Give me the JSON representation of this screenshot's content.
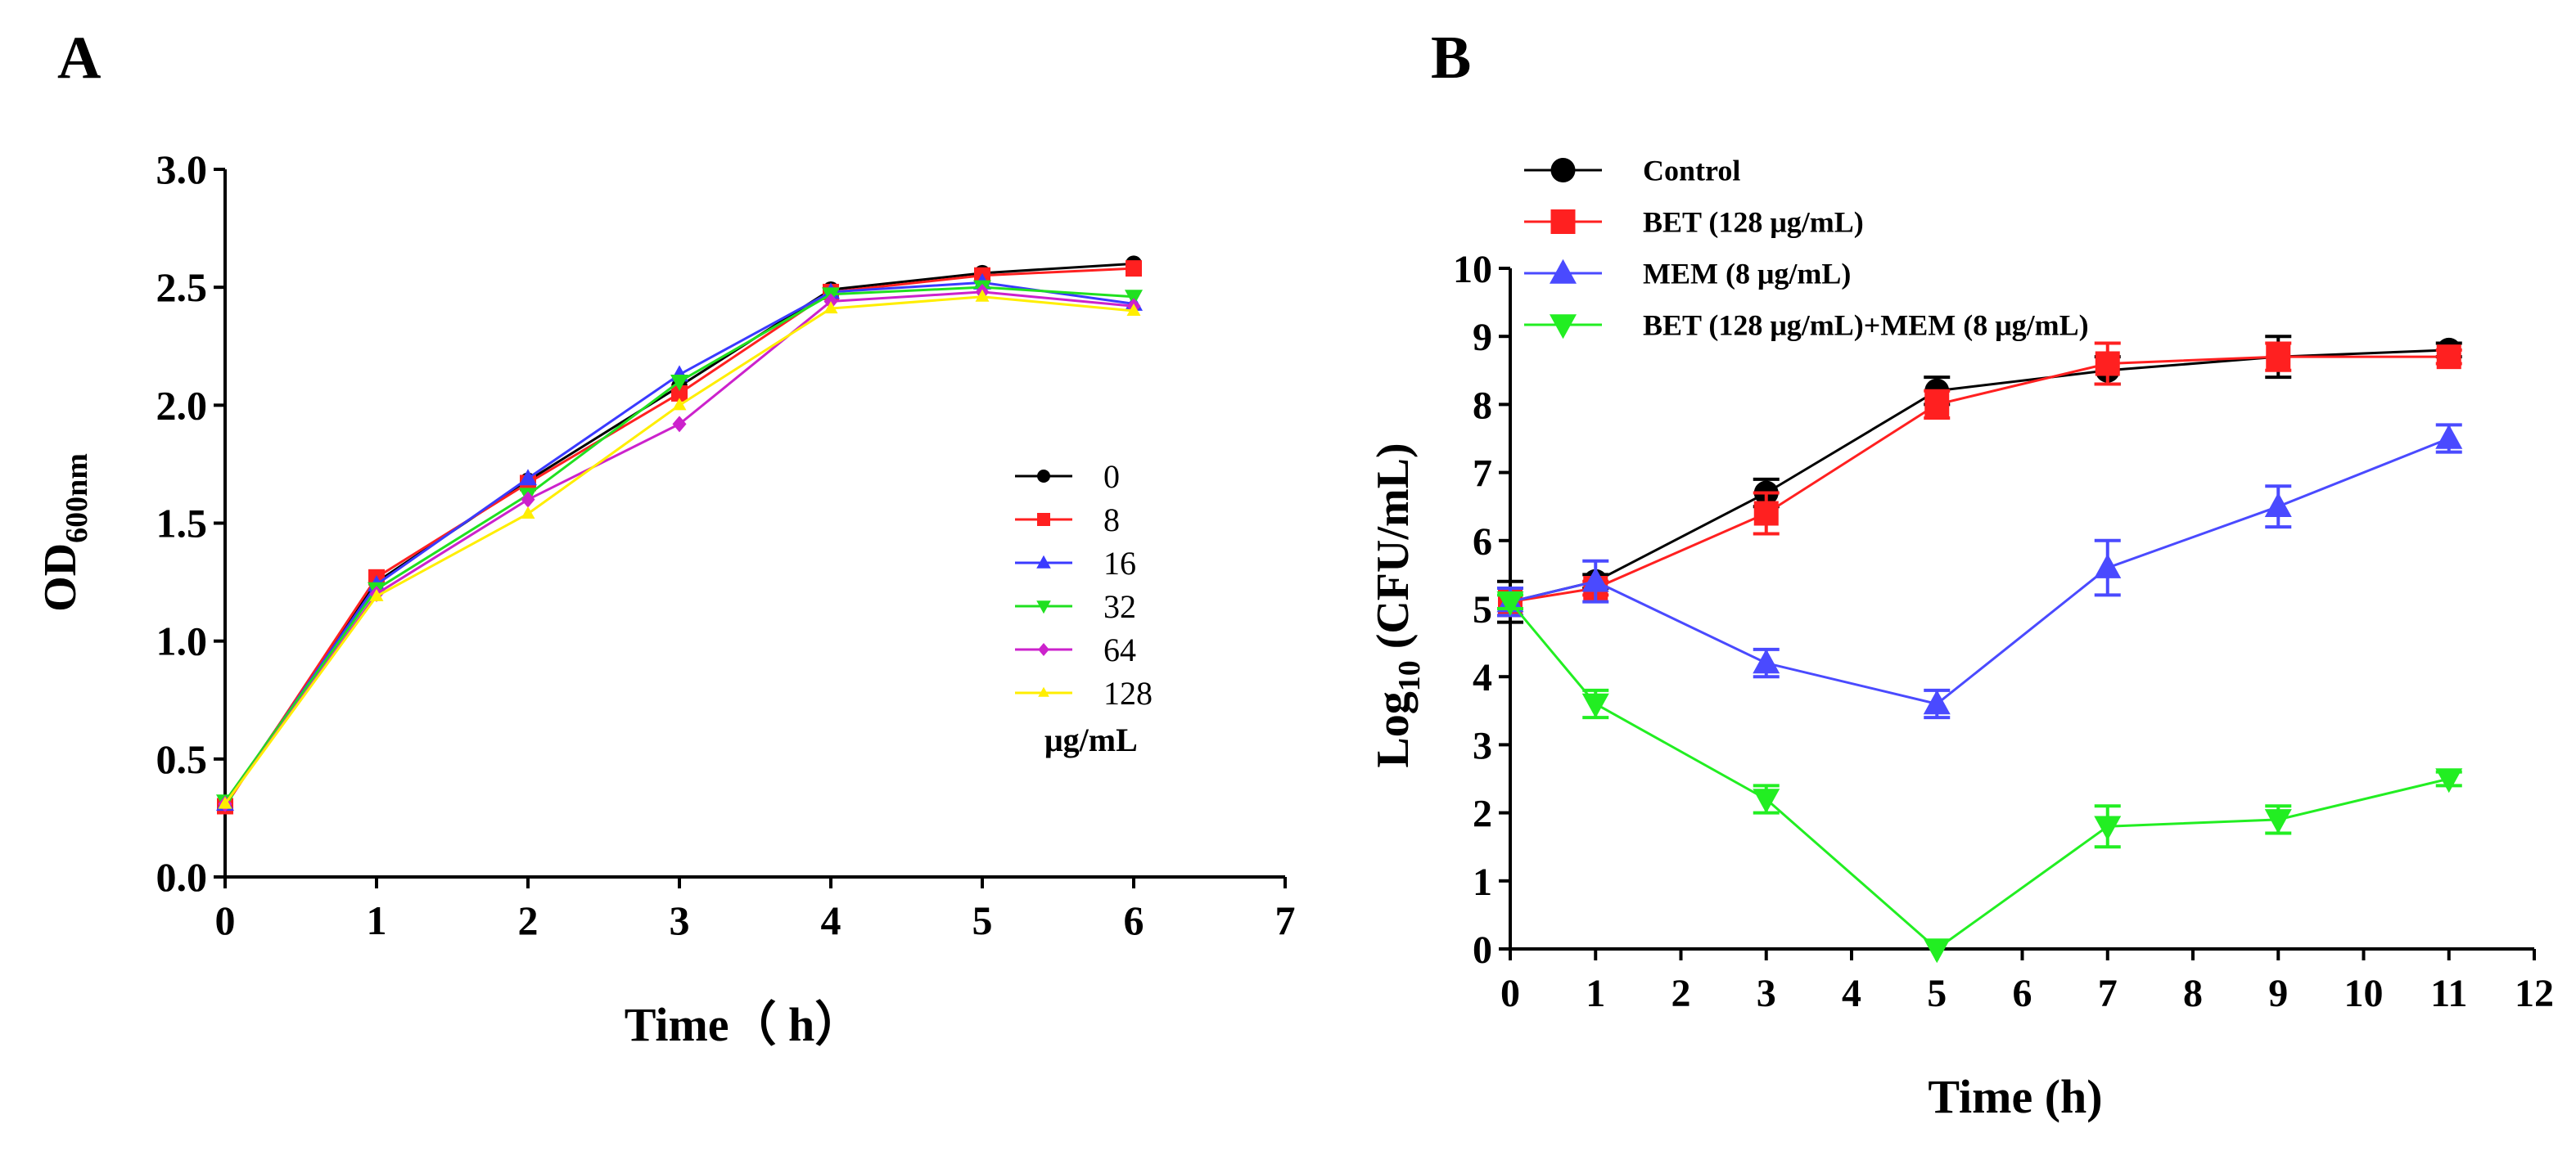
{
  "chart_data": [
    {
      "panel_label": "A",
      "type": "line",
      "title": "",
      "xlabel": "Time（ h）",
      "ylabel_main": "OD",
      "ylabel_sub": "600nm",
      "xlim": [
        0,
        7
      ],
      "ylim": [
        0,
        3.0
      ],
      "xticks": [
        "0",
        "1",
        "2",
        "3",
        "4",
        "5",
        "6",
        "7"
      ],
      "yticks": [
        "0.0",
        "0.5",
        "1.0",
        "1.5",
        "2.0",
        "2.5",
        "3.0"
      ],
      "legend_title": "μg/mL",
      "legend_position": "center-right",
      "x": [
        0,
        1,
        2,
        3,
        4,
        5,
        6
      ],
      "series": [
        {
          "name": "0",
          "color": "#000000",
          "marker": "circle",
          "values": [
            0.31,
            1.25,
            1.68,
            2.08,
            2.49,
            2.56,
            2.6
          ]
        },
        {
          "name": "8",
          "color": "#ff2020",
          "marker": "square",
          "values": [
            0.3,
            1.27,
            1.67,
            2.05,
            2.48,
            2.55,
            2.58
          ]
        },
        {
          "name": "16",
          "color": "#3a3aff",
          "marker": "triangle-up",
          "values": [
            0.31,
            1.24,
            1.69,
            2.13,
            2.48,
            2.52,
            2.43
          ]
        },
        {
          "name": "32",
          "color": "#20e020",
          "marker": "triangle-down",
          "values": [
            0.32,
            1.22,
            1.62,
            2.1,
            2.47,
            2.5,
            2.46
          ]
        },
        {
          "name": "64",
          "color": "#cc22cc",
          "marker": "diamond",
          "values": [
            0.31,
            1.2,
            1.6,
            1.92,
            2.44,
            2.48,
            2.42
          ]
        },
        {
          "name": "128",
          "color": "#ffee00",
          "marker": "triangle-up-small",
          "values": [
            0.31,
            1.19,
            1.54,
            2.0,
            2.41,
            2.46,
            2.4
          ]
        }
      ]
    },
    {
      "panel_label": "B",
      "type": "line",
      "title": "",
      "xlabel": "Time (h)",
      "ylabel_main": "Log",
      "ylabel_sub": "10",
      "ylabel_rest": " (CFU/mL)",
      "xlim": [
        0,
        12
      ],
      "ylim": [
        0,
        10
      ],
      "xticks": [
        "0",
        "1",
        "2",
        "3",
        "4",
        "5",
        "6",
        "7",
        "8",
        "9",
        "10",
        "11",
        "12"
      ],
      "yticks": [
        "0",
        "1",
        "2",
        "3",
        "4",
        "5",
        "6",
        "7",
        "8",
        "9",
        "10"
      ],
      "legend_position": "top-left",
      "x": [
        0,
        1,
        3,
        5,
        7,
        9,
        11
      ],
      "series": [
        {
          "name": "Control",
          "color": "#000000",
          "marker": "circle",
          "values": [
            5.1,
            5.4,
            6.7,
            8.2,
            8.5,
            8.7,
            8.8
          ],
          "errors": [
            0.3,
            0.1,
            0.2,
            0.2,
            0.2,
            0.3,
            0.1
          ]
        },
        {
          "name": "BET (128 μg/mL)",
          "color": "#ff2020",
          "marker": "square",
          "values": [
            5.1,
            5.3,
            6.4,
            8.0,
            8.6,
            8.7,
            8.7
          ],
          "errors": [
            0.2,
            0.1,
            0.3,
            0.2,
            0.3,
            0.2,
            0.1
          ]
        },
        {
          "name": "MEM (8 μg/mL)",
          "color": "#4a4aff",
          "marker": "triangle-up",
          "values": [
            5.1,
            5.4,
            4.2,
            3.6,
            5.6,
            6.5,
            7.5
          ],
          "errors": [
            0.2,
            0.3,
            0.2,
            0.2,
            0.4,
            0.3,
            0.2
          ]
        },
        {
          "name": "BET (128 μg/mL)+MEM (8 μg/mL)",
          "color": "#22ee22",
          "marker": "triangle-down",
          "values": [
            5.1,
            3.6,
            2.2,
            0.0,
            1.8,
            1.9,
            2.5
          ],
          "errors": [
            0.1,
            0.2,
            0.2,
            0.0,
            0.3,
            0.2,
            0.1
          ]
        }
      ]
    }
  ]
}
